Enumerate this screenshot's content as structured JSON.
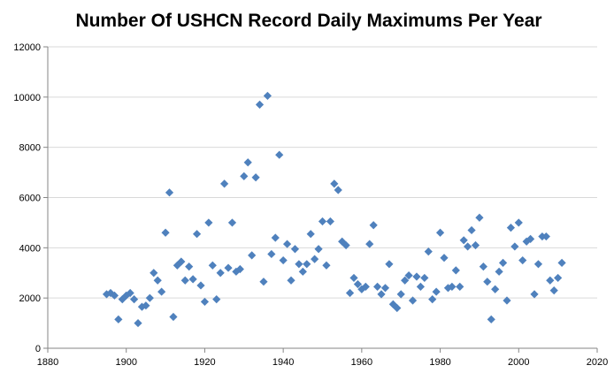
{
  "chart_data": {
    "type": "scatter",
    "title": "Number Of USHCN Record Daily Maximums Per Year",
    "xlabel": "",
    "ylabel": "",
    "xlim": [
      1880,
      2020
    ],
    "ylim": [
      0,
      12000
    ],
    "x_ticks": [
      "1880",
      "1900",
      "1920",
      "1940",
      "1960",
      "1980",
      "2000",
      "2020"
    ],
    "y_ticks": [
      "0",
      "2000",
      "4000",
      "6000",
      "8000",
      "10000",
      "12000"
    ],
    "grid": "horizontal",
    "legend": "none",
    "marker": "diamond",
    "marker_color": "#4f81bd",
    "points": [
      {
        "x": 1895,
        "y": 2150
      },
      {
        "x": 1896,
        "y": 2200
      },
      {
        "x": 1897,
        "y": 2100
      },
      {
        "x": 1898,
        "y": 1150
      },
      {
        "x": 1899,
        "y": 1950
      },
      {
        "x": 1900,
        "y": 2100
      },
      {
        "x": 1901,
        "y": 2200
      },
      {
        "x": 1902,
        "y": 1950
      },
      {
        "x": 1903,
        "y": 1000
      },
      {
        "x": 1904,
        "y": 1650
      },
      {
        "x": 1905,
        "y": 1700
      },
      {
        "x": 1906,
        "y": 2000
      },
      {
        "x": 1907,
        "y": 3000
      },
      {
        "x": 1908,
        "y": 2700
      },
      {
        "x": 1909,
        "y": 2250
      },
      {
        "x": 1910,
        "y": 4600
      },
      {
        "x": 1911,
        "y": 6200
      },
      {
        "x": 1912,
        "y": 1250
      },
      {
        "x": 1913,
        "y": 3300
      },
      {
        "x": 1914,
        "y": 3450
      },
      {
        "x": 1915,
        "y": 2700
      },
      {
        "x": 1916,
        "y": 3250
      },
      {
        "x": 1917,
        "y": 2750
      },
      {
        "x": 1918,
        "y": 4550
      },
      {
        "x": 1919,
        "y": 2500
      },
      {
        "x": 1920,
        "y": 1850
      },
      {
        "x": 1921,
        "y": 5000
      },
      {
        "x": 1922,
        "y": 3300
      },
      {
        "x": 1923,
        "y": 1950
      },
      {
        "x": 1924,
        "y": 3000
      },
      {
        "x": 1925,
        "y": 6550
      },
      {
        "x": 1926,
        "y": 3200
      },
      {
        "x": 1927,
        "y": 5000
      },
      {
        "x": 1928,
        "y": 3050
      },
      {
        "x": 1929,
        "y": 3150
      },
      {
        "x": 1930,
        "y": 6850
      },
      {
        "x": 1931,
        "y": 7400
      },
      {
        "x": 1932,
        "y": 3700
      },
      {
        "x": 1933,
        "y": 6800
      },
      {
        "x": 1934,
        "y": 9700
      },
      {
        "x": 1935,
        "y": 2650
      },
      {
        "x": 1936,
        "y": 10050
      },
      {
        "x": 1937,
        "y": 3750
      },
      {
        "x": 1938,
        "y": 4400
      },
      {
        "x": 1939,
        "y": 7700
      },
      {
        "x": 1940,
        "y": 3500
      },
      {
        "x": 1941,
        "y": 4150
      },
      {
        "x": 1942,
        "y": 2700
      },
      {
        "x": 1943,
        "y": 3950
      },
      {
        "x": 1944,
        "y": 3350
      },
      {
        "x": 1945,
        "y": 3050
      },
      {
        "x": 1946,
        "y": 3350
      },
      {
        "x": 1947,
        "y": 4550
      },
      {
        "x": 1948,
        "y": 3550
      },
      {
        "x": 1949,
        "y": 3950
      },
      {
        "x": 1950,
        "y": 5050
      },
      {
        "x": 1951,
        "y": 3300
      },
      {
        "x": 1952,
        "y": 5050
      },
      {
        "x": 1953,
        "y": 6550
      },
      {
        "x": 1954,
        "y": 6300
      },
      {
        "x": 1955,
        "y": 4250
      },
      {
        "x": 1956,
        "y": 4100
      },
      {
        "x": 1957,
        "y": 2200
      },
      {
        "x": 1958,
        "y": 2800
      },
      {
        "x": 1959,
        "y": 2550
      },
      {
        "x": 1960,
        "y": 2350
      },
      {
        "x": 1961,
        "y": 2450
      },
      {
        "x": 1962,
        "y": 4150
      },
      {
        "x": 1963,
        "y": 4900
      },
      {
        "x": 1964,
        "y": 2450
      },
      {
        "x": 1965,
        "y": 2150
      },
      {
        "x": 1966,
        "y": 2400
      },
      {
        "x": 1967,
        "y": 3350
      },
      {
        "x": 1968,
        "y": 1750
      },
      {
        "x": 1969,
        "y": 1600
      },
      {
        "x": 1970,
        "y": 2150
      },
      {
        "x": 1971,
        "y": 2700
      },
      {
        "x": 1972,
        "y": 2900
      },
      {
        "x": 1973,
        "y": 1900
      },
      {
        "x": 1974,
        "y": 2850
      },
      {
        "x": 1975,
        "y": 2450
      },
      {
        "x": 1976,
        "y": 2800
      },
      {
        "x": 1977,
        "y": 3850
      },
      {
        "x": 1978,
        "y": 1950
      },
      {
        "x": 1979,
        "y": 2250
      },
      {
        "x": 1980,
        "y": 4600
      },
      {
        "x": 1981,
        "y": 3600
      },
      {
        "x": 1982,
        "y": 2400
      },
      {
        "x": 1983,
        "y": 2450
      },
      {
        "x": 1984,
        "y": 3100
      },
      {
        "x": 1985,
        "y": 2450
      },
      {
        "x": 1986,
        "y": 4300
      },
      {
        "x": 1987,
        "y": 4050
      },
      {
        "x": 1988,
        "y": 4700
      },
      {
        "x": 1989,
        "y": 4100
      },
      {
        "x": 1990,
        "y": 5200
      },
      {
        "x": 1991,
        "y": 3250
      },
      {
        "x": 1992,
        "y": 2650
      },
      {
        "x": 1993,
        "y": 1150
      },
      {
        "x": 1994,
        "y": 2350
      },
      {
        "x": 1995,
        "y": 3050
      },
      {
        "x": 1996,
        "y": 3400
      },
      {
        "x": 1997,
        "y": 1900
      },
      {
        "x": 1998,
        "y": 4800
      },
      {
        "x": 1999,
        "y": 4050
      },
      {
        "x": 2000,
        "y": 5000
      },
      {
        "x": 2001,
        "y": 3500
      },
      {
        "x": 2002,
        "y": 4250
      },
      {
        "x": 2003,
        "y": 4350
      },
      {
        "x": 2004,
        "y": 2150
      },
      {
        "x": 2005,
        "y": 3350
      },
      {
        "x": 2006,
        "y": 4450
      },
      {
        "x": 2007,
        "y": 4450
      },
      {
        "x": 2008,
        "y": 2700
      },
      {
        "x": 2009,
        "y": 2300
      },
      {
        "x": 2010,
        "y": 2800
      },
      {
        "x": 2011,
        "y": 3400
      }
    ]
  },
  "colors": {
    "marker": "#4f81bd",
    "gridline": "#d9d9d9",
    "axis": "#868686",
    "background": "#ffffff"
  }
}
